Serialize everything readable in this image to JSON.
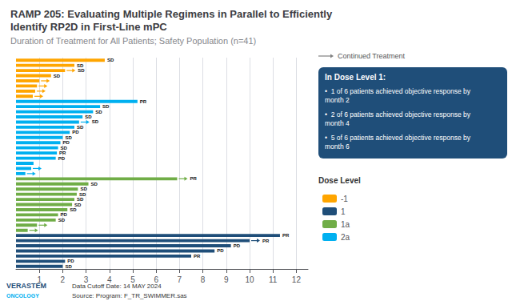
{
  "chart_data": {
    "type": "bar",
    "orientation": "horizontal",
    "title": "RAMP 205: Evaluating Multiple Regimens in Parallel to Efficiently\nIdentify RP2D in First-Line mPC",
    "subtitle": "Duration of Treatment for All Patients; Safety Population (n=41)",
    "categories": [
      null,
      null,
      null,
      null,
      null,
      null,
      null,
      null,
      null,
      null,
      null,
      null,
      null,
      null,
      null,
      null,
      null,
      null,
      null,
      null,
      null,
      null,
      null,
      null,
      null,
      null,
      null,
      null,
      null,
      null,
      null,
      null,
      null,
      null,
      null,
      null,
      null,
      null,
      null,
      null,
      null
    ],
    "series": [
      {
        "name": "-1",
        "color": "#FFA500",
        "values": [
          3.8,
          2.5,
          2.1,
          1.5,
          1.0,
          0.9,
          0.82,
          0.72,
          null,
          null,
          null,
          null,
          null,
          null,
          null,
          null,
          null,
          null,
          null,
          null,
          null,
          null,
          null,
          null,
          null,
          null,
          null,
          null,
          null,
          null,
          null,
          null,
          null,
          null,
          null,
          null,
          null,
          null,
          null,
          null,
          null
        ],
        "labels": [
          "SD",
          "SD",
          "SD",
          "SD",
          null,
          null,
          null,
          null,
          null,
          null,
          null,
          null,
          null,
          null,
          null,
          null,
          null,
          null,
          null,
          null,
          null,
          null,
          null,
          null,
          null,
          null,
          null,
          null,
          null,
          null,
          null,
          null,
          null,
          null,
          null,
          null,
          null,
          null,
          null,
          null,
          null
        ],
        "continued": [
          false,
          false,
          true,
          false,
          true,
          true,
          true,
          true,
          null,
          null,
          null,
          null,
          null,
          null,
          null,
          null,
          null,
          null,
          null,
          null,
          null,
          null,
          null,
          null,
          null,
          null,
          null,
          null,
          null,
          null,
          null,
          null,
          null,
          null,
          null,
          null,
          null,
          null,
          null,
          null,
          null
        ]
      },
      {
        "name": "1",
        "color": "#1F4E79",
        "values": [
          null,
          null,
          null,
          null,
          null,
          null,
          null,
          null,
          null,
          null,
          null,
          null,
          null,
          null,
          null,
          null,
          null,
          null,
          null,
          null,
          null,
          null,
          null,
          null,
          null,
          null,
          null,
          null,
          null,
          null,
          null,
          null,
          null,
          null,
          11.3,
          10.0,
          9.2,
          8.5,
          7.5,
          2.1,
          2.0
        ],
        "labels": [
          null,
          null,
          null,
          null,
          null,
          null,
          null,
          null,
          null,
          null,
          null,
          null,
          null,
          null,
          null,
          null,
          null,
          null,
          null,
          null,
          null,
          null,
          null,
          null,
          null,
          null,
          null,
          null,
          null,
          null,
          null,
          null,
          null,
          null,
          "PR",
          "PR",
          "PD",
          "PD",
          "PR",
          "PD",
          "SD"
        ],
        "continued": [
          null,
          null,
          null,
          null,
          null,
          null,
          null,
          null,
          null,
          null,
          null,
          null,
          null,
          null,
          null,
          null,
          null,
          null,
          null,
          null,
          null,
          null,
          null,
          null,
          null,
          null,
          null,
          null,
          null,
          null,
          null,
          null,
          null,
          null,
          false,
          true,
          false,
          false,
          false,
          false,
          false
        ]
      },
      {
        "name": "1a",
        "color": "#70AD47",
        "values": [
          null,
          null,
          null,
          null,
          null,
          null,
          null,
          null,
          null,
          null,
          null,
          null,
          null,
          null,
          null,
          null,
          null,
          null,
          null,
          null,
          null,
          null,
          null,
          6.9,
          3.1,
          2.65,
          2.6,
          2.5,
          2.4,
          2.2,
          1.8,
          1.7,
          0.9,
          0.5,
          null,
          null,
          null,
          null,
          null,
          null,
          null
        ],
        "labels": [
          null,
          null,
          null,
          null,
          null,
          null,
          null,
          null,
          null,
          null,
          null,
          null,
          null,
          null,
          null,
          null,
          null,
          null,
          null,
          null,
          null,
          null,
          null,
          "PR",
          "SD",
          "SD",
          "SD",
          "SD",
          "SD",
          "SD",
          "PD",
          "SD",
          null,
          null,
          null,
          null,
          null,
          null,
          null,
          null,
          null
        ],
        "continued": [
          null,
          null,
          null,
          null,
          null,
          null,
          null,
          null,
          null,
          null,
          null,
          null,
          null,
          null,
          null,
          null,
          null,
          null,
          null,
          null,
          null,
          null,
          null,
          true,
          false,
          false,
          false,
          false,
          false,
          false,
          false,
          false,
          true,
          true,
          null,
          null,
          null,
          null,
          null,
          null,
          null
        ]
      },
      {
        "name": "2a",
        "color": "#00B0F0",
        "values": [
          null,
          null,
          null,
          null,
          null,
          null,
          null,
          null,
          5.2,
          3.6,
          3.3,
          2.85,
          2.7,
          2.5,
          2.3,
          2.0,
          1.9,
          1.8,
          1.75,
          1.7,
          0.75,
          0.65,
          0.4,
          null,
          null,
          null,
          null,
          null,
          null,
          null,
          null,
          null,
          null,
          null,
          null,
          null,
          null,
          null,
          null,
          null,
          null
        ],
        "labels": [
          null,
          null,
          null,
          null,
          null,
          null,
          null,
          null,
          "PR",
          "SD",
          "SD",
          "SD",
          "SD",
          "SD",
          "PD",
          "SD",
          "PD",
          "SD",
          "PR",
          "PD",
          null,
          null,
          null,
          null,
          null,
          null,
          null,
          null,
          null,
          null,
          null,
          null,
          null,
          null,
          null,
          null,
          null,
          null,
          null,
          null,
          null
        ],
        "continued": [
          null,
          null,
          null,
          null,
          null,
          null,
          null,
          null,
          false,
          false,
          false,
          false,
          true,
          false,
          false,
          false,
          false,
          false,
          false,
          false,
          false,
          true,
          true,
          null,
          null,
          null,
          null,
          null,
          null,
          null,
          null,
          null,
          null,
          null,
          null,
          null,
          null,
          null,
          null,
          null,
          null
        ]
      }
    ],
    "xlim": [
      0,
      12.5
    ],
    "xticks": [
      1,
      2,
      3,
      4,
      5,
      6,
      7,
      8,
      9,
      10,
      11,
      12
    ],
    "grid": true,
    "legend": "right",
    "tick_labels": "x",
    "legend_title": "Dose Level",
    "continued_treatment_label": "Continued Treatment",
    "annotation_title": "In Dose Level 1:",
    "annotation_bullets": [
      "•  1 of 6 patients achieved objective response by\nmonth 2",
      "•  2 of 6 patients achieved objective response by\nmonth 4",
      "•  5 of 6 patients achieved objective response by\nmonth 6"
    ],
    "footnotes": [
      "Data Cutoff Date: 14 MAY 2024",
      "Source: Program: F_TR_SWIMMER.sas"
    ],
    "branding": [
      "VERASTEM",
      "ONCOLOGY"
    ]
  }
}
